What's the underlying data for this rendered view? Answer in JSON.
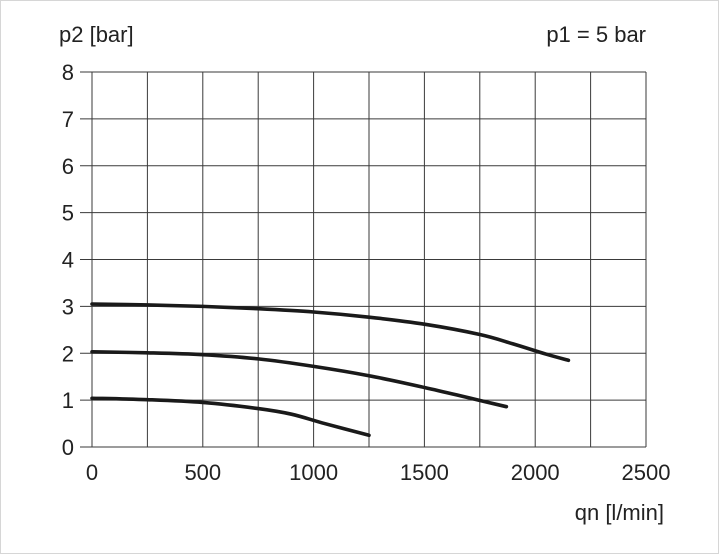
{
  "chart_data": {
    "type": "line",
    "ylabel": "p2 [bar]",
    "xlabel": "qn [l/min]",
    "annotation": "p1 = 5 bar",
    "xlim": [
      0,
      2500
    ],
    "ylim": [
      0,
      8
    ],
    "x_ticks": [
      "0",
      "500",
      "1000",
      "1500",
      "2000",
      "2500"
    ],
    "y_ticks": [
      "0",
      "1",
      "2",
      "3",
      "4",
      "5",
      "6",
      "7",
      "8"
    ],
    "grid": true,
    "series": [
      {
        "x": [
          0,
          250,
          500,
          750,
          1000,
          1250,
          1500,
          1750,
          1900,
          2050,
          2150
        ],
        "y": [
          3.05,
          3.03,
          3.0,
          2.95,
          2.88,
          2.77,
          2.62,
          2.4,
          2.2,
          1.98,
          1.85
        ]
      },
      {
        "x": [
          0,
          250,
          500,
          750,
          1000,
          1250,
          1500,
          1700,
          1870
        ],
        "y": [
          2.03,
          2.01,
          1.97,
          1.88,
          1.72,
          1.52,
          1.27,
          1.05,
          0.86
        ]
      },
      {
        "x": [
          0,
          250,
          500,
          750,
          900,
          1050,
          1250
        ],
        "y": [
          1.04,
          1.01,
          0.95,
          0.82,
          0.7,
          0.5,
          0.25
        ]
      }
    ]
  }
}
